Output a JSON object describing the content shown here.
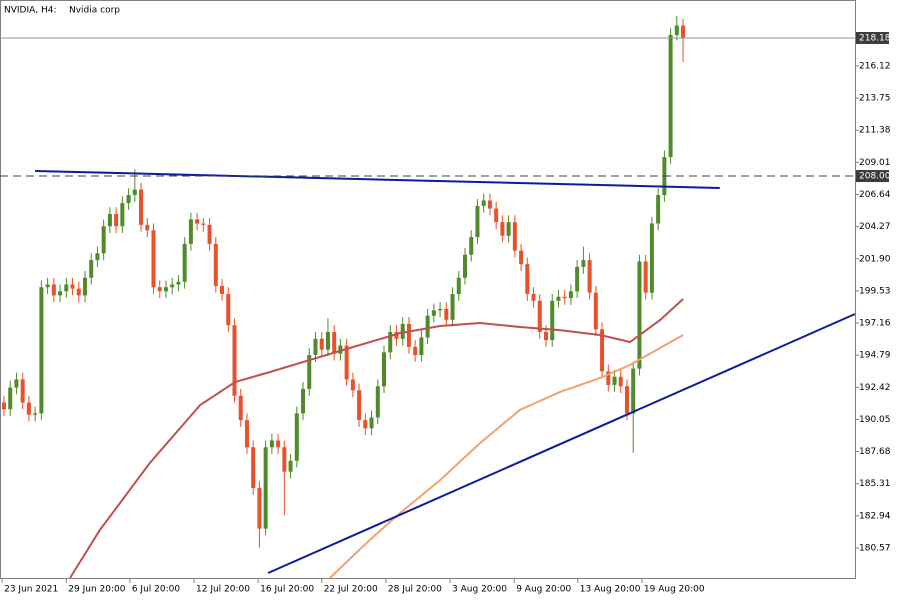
{
  "chart_data": {
    "type": "candlestick",
    "title": "NVIDIA, H4:",
    "subtitle": "Nvidia corp",
    "up_color": "#4f8a2b",
    "down_color": "#e8512a",
    "xlim": [
      -0.64,
      136.6
    ],
    "xticks": [
      {
        "value": -0.3,
        "label": "23 Jun 2021"
      },
      {
        "value": 10.0,
        "label": "29 Jun 20:00"
      },
      {
        "value": 20.2,
        "label": "6 Jul 20:00"
      },
      {
        "value": 30.5,
        "label": "12 Jul 20:00"
      },
      {
        "value": 40.8,
        "label": "16 Jul 20:00"
      },
      {
        "value": 51.0,
        "label": "22 Jul 20:00"
      },
      {
        "value": 61.3,
        "label": "28 Jul 20:00"
      },
      {
        "value": 71.6,
        "label": "3 Aug 20:00"
      },
      {
        "value": 81.9,
        "label": "9 Aug 20:00"
      },
      {
        "value": 92.1,
        "label": "13 Aug 20:00"
      },
      {
        "value": 102.4,
        "label": "19 Aug 20:00"
      }
    ],
    "ylim": [
      178.36,
      220.98
    ],
    "yticks": [
      216.12,
      213.75,
      211.38,
      209.01,
      206.64,
      204.27,
      {
        "value": 201.9,
        "label": "201.90"
      },
      199.53,
      197.16,
      194.79,
      192.42,
      190.05,
      187.68,
      185.31,
      182.94,
      180.57
    ],
    "open": [
      191.3,
      190.8,
      192.4,
      193,
      191.3,
      190.4,
      190.5,
      199.8,
      200,
      199.2,
      199.5,
      200,
      199.7,
      199.2,
      200.5,
      201.8,
      202.3,
      204.3,
      205.2,
      204.3,
      206,
      206.6,
      207,
      204.4,
      204,
      199.8,
      199.5,
      199.8,
      200,
      200.2,
      203,
      204.8,
      204.5,
      204.4,
      203,
      199.9,
      199.3,
      197,
      191.8,
      190,
      188,
      185,
      182,
      188,
      188.5,
      188,
      186.2,
      187,
      190.5,
      192.3,
      194.8,
      196,
      195.2,
      196.5,
      194.9,
      195.5,
      193,
      192.2,
      190,
      189.4,
      190.2,
      192.5,
      195,
      196.5,
      196,
      197.1,
      195.4,
      194.8,
      196.1,
      197.7,
      198.1,
      198.2,
      197.4,
      199.3,
      200.5,
      202.2,
      203.5,
      205.8,
      206.2,
      205.6,
      204.6,
      203.6,
      204.6,
      202.5,
      201.5,
      199.3,
      198.8,
      196.5,
      195.9,
      198.8,
      199.1,
      199,
      199.5,
      201.3,
      201.8,
      199.4,
      196.7,
      193.6,
      192.6,
      193.2,
      192.5,
      190.5,
      193.8,
      201.7,
      199.4,
      204.5,
      206.6,
      209.4,
      218.4,
      219.1
    ],
    "high": [
      191.8,
      192.9,
      193.5,
      193.5,
      191.8,
      191,
      200.3,
      200.5,
      200.5,
      200,
      200.5,
      200.5,
      200.2,
      201,
      202.3,
      202.8,
      204.8,
      205.7,
      205.7,
      206.5,
      207.1,
      208.5,
      207.5,
      204.9,
      204.5,
      200.3,
      200.3,
      200.5,
      200.7,
      203.5,
      205.3,
      205.3,
      204.9,
      204.9,
      203.5,
      200.4,
      199.8,
      197.5,
      192.3,
      190.5,
      188.5,
      185.5,
      188.5,
      189,
      189,
      188.5,
      187.5,
      191,
      192.8,
      195.3,
      196.5,
      196.5,
      197.5,
      197,
      196,
      196,
      193.5,
      192.7,
      190.5,
      190.7,
      193,
      195.5,
      197,
      197,
      197.6,
      197.6,
      195.9,
      196.6,
      198.2,
      198.6,
      198.7,
      198.7,
      199.8,
      201,
      202.7,
      204,
      206.3,
      206.7,
      206.7,
      206.1,
      205.1,
      205.1,
      205.1,
      203,
      202,
      199.8,
      199.3,
      197,
      199.3,
      199.6,
      199.6,
      200,
      201.8,
      202.8,
      202.3,
      199.9,
      197.2,
      194.1,
      193.7,
      193.7,
      193,
      194.3,
      202.2,
      202.2,
      205,
      207.1,
      209.9,
      218.9,
      219.8,
      219.6
    ],
    "low": [
      190.3,
      190.3,
      191.9,
      190.8,
      189.9,
      189.9,
      190,
      199.3,
      198.7,
      198.7,
      199,
      199.2,
      198.7,
      198.7,
      200,
      201.3,
      201.8,
      203.8,
      203.8,
      203.8,
      205.5,
      206.1,
      203.9,
      203.5,
      199.3,
      199,
      199,
      199.3,
      199.5,
      199.7,
      202.5,
      204,
      203.9,
      202.5,
      199.4,
      198.8,
      196.5,
      191.3,
      189.5,
      187.5,
      184.5,
      180.6,
      181.5,
      187.5,
      187.5,
      183,
      185.7,
      186.5,
      190,
      191.8,
      194.3,
      194.7,
      194.7,
      194.4,
      194.4,
      192.5,
      191.7,
      189.5,
      188.9,
      188.9,
      189.7,
      192,
      194.5,
      195.5,
      195.5,
      194.9,
      194.3,
      194.3,
      195.6,
      197.2,
      197.6,
      196.9,
      196.9,
      198.8,
      200,
      201.7,
      203,
      205.3,
      205.1,
      204.1,
      203.1,
      203.1,
      202,
      201,
      198.8,
      198.3,
      196,
      195.4,
      195.4,
      198.3,
      198.5,
      198.5,
      199,
      200.8,
      198.9,
      196.2,
      193.1,
      192.1,
      192.1,
      192,
      190,
      187.6,
      193.3,
      198.9,
      198.9,
      204,
      206.1,
      208.9,
      218,
      216.4
    ],
    "close": [
      190.8,
      192.4,
      193,
      191.3,
      190.4,
      190.5,
      199.8,
      200,
      199.2,
      199.5,
      200,
      199.7,
      199.2,
      200.5,
      201.8,
      202.3,
      204.3,
      205.2,
      204.3,
      206,
      206.6,
      207,
      204.4,
      204,
      199.8,
      199.5,
      199.8,
      200,
      200.2,
      203,
      204.8,
      204.5,
      204.4,
      203,
      199.9,
      199.3,
      197,
      191.8,
      190,
      188,
      185,
      182,
      188,
      188.5,
      188,
      186.2,
      187,
      190.5,
      192.3,
      194.8,
      196,
      195.2,
      196.5,
      194.9,
      195.5,
      193,
      192.2,
      190,
      189.4,
      190.2,
      192.5,
      195,
      196.5,
      196,
      197.1,
      195.4,
      194.8,
      196.1,
      197.7,
      198.1,
      198.2,
      197.4,
      199.3,
      200.5,
      202.2,
      203.5,
      205.8,
      206.2,
      205.6,
      204.6,
      203.6,
      204.6,
      202.5,
      201.5,
      199.3,
      198.8,
      196.5,
      195.9,
      198.8,
      199.1,
      199,
      199.5,
      201.3,
      201.8,
      199.4,
      196.7,
      193.6,
      192.6,
      193.2,
      192.5,
      190.5,
      193.8,
      201.7,
      199.4,
      204.5,
      206.6,
      209.4,
      218.4,
      219.1,
      218.2
    ],
    "lines": [
      {
        "color": "#c0504d",
        "x": [
          10.6,
          15.4,
          23.4,
          31.5,
          37.1,
          42.7,
          49.1,
          55.5,
          63.6,
          70.0,
          76.4,
          82.8,
          89.2,
          95.7,
          100.5,
          105.3,
          109.0
        ],
        "values": [
          178.36,
          181.9,
          186.84,
          191.12,
          192.81,
          193.55,
          194.44,
          195.32,
          196.42,
          196.94,
          197.16,
          196.87,
          196.64,
          196.28,
          195.76,
          197.38,
          198.93
        ]
      },
      {
        "color": "#f4a070",
        "x": [
          52.3,
          58.7,
          63.6,
          70.0,
          76.4,
          82.8,
          89.2,
          95.7,
          100.5,
          105.3,
          109.0
        ],
        "values": [
          178.36,
          181.16,
          183.15,
          185.58,
          188.31,
          190.75,
          192.07,
          193.11,
          194.07,
          195.32,
          196.28
        ]
      },
      {
        "color": "#0c1c9c",
        "x": [
          5.0,
          114.9
        ],
        "values": [
          208.37,
          207.12
        ]
      },
      {
        "color": "#0c1c9c",
        "x": [
          42.4,
          136.6
        ],
        "values": [
          178.73,
          197.83
        ]
      }
    ],
    "hlines": [
      {
        "value": 218.18,
        "color": "#8a9a8a",
        "dashed": false
      },
      {
        "value": 208,
        "label": "208.00",
        "color": "#404040",
        "dashed": true
      }
    ]
  }
}
